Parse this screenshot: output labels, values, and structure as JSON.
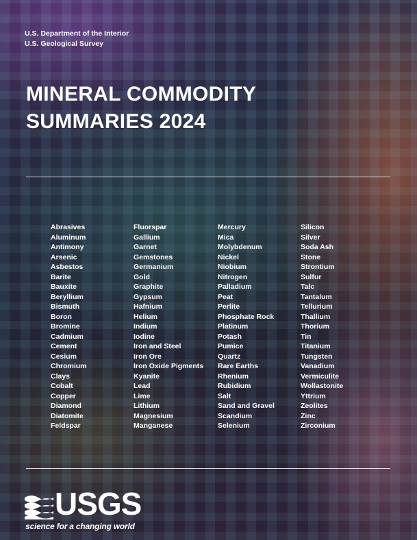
{
  "agency": {
    "line1": "U.S. Department of the Interior",
    "line2": "U.S. Geological Survey"
  },
  "title": {
    "line1": "MINERAL COMMODITY",
    "line2": "SUMMARIES 2024"
  },
  "commodities": {
    "col1": [
      "Abrasives",
      "Aluminum",
      "Antimony",
      "Arsenic",
      "Asbestos",
      "Barite",
      "Bauxite",
      "Beryllium",
      "Bismuth",
      "Boron",
      "Bromine",
      "Cadmium",
      "Cement",
      "Cesium",
      "Chromium",
      "Clays",
      "Cobalt",
      "Copper",
      "Diamond",
      "Diatomite",
      "Feldspar"
    ],
    "col2": [
      "Fluorspar",
      "Gallium",
      "Garnet",
      "Gemstones",
      "Germanium",
      "Gold",
      "Graphite",
      "Gypsum",
      "Hafnium",
      "Helium",
      "Indium",
      "Iodine",
      "Iron and Steel",
      "Iron Ore",
      "Iron Oxide Pigments",
      "Kyanite",
      "Lead",
      "Lime",
      "Lithium",
      "Magnesium",
      "Manganese"
    ],
    "col3": [
      "Mercury",
      "Mica",
      "Molybdenum",
      "Nickel",
      "Niobium",
      "Nitrogen",
      "Palladium",
      "Peat",
      "Perlite",
      "Phosphate Rock",
      "Platinum",
      "Potash",
      "Pumice",
      "Quartz",
      "Rare Earths",
      "Rhenium",
      "Rubidium",
      "Salt",
      "Sand and Gravel",
      "Scandium",
      "Selenium"
    ],
    "col4": [
      "Silicon",
      "Silver",
      "Soda Ash",
      "Stone",
      "Strontium",
      "Sulfur",
      "Talc",
      "Tantalum",
      "Tellurium",
      "Thallium",
      "Thorium",
      "Tin",
      "Titanium",
      "Tungsten",
      "Vanadium",
      "Vermiculite",
      "Wollastonite",
      "Yttrium",
      "Zeolites",
      "Zinc",
      "Zirconium"
    ]
  },
  "logo": {
    "wordmark": "USGS",
    "tagline": "science for a changing world",
    "icon": "usgs-wave-icon"
  },
  "colors": {
    "text": "#ffffff"
  }
}
